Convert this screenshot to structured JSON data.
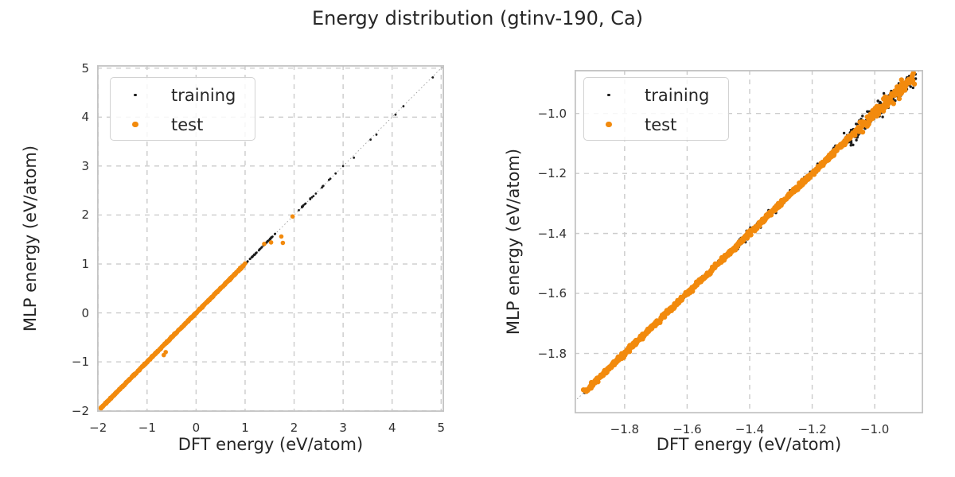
{
  "figure": {
    "title": "Energy distribution (gtinv-190, Ca)"
  },
  "colors": {
    "training": "#1c1c1c",
    "test": "#f28a0d",
    "grid": "#cbcbcb",
    "spine": "#c4c4c4",
    "identity_line": "#9a9a9a",
    "text": "#262626",
    "tick_text": "#303030",
    "background": "#ffffff"
  },
  "legend": {
    "training_label": "training",
    "test_label": "test",
    "position": "upper-left"
  },
  "chart_data": [
    {
      "type": "scatter",
      "panel": "left",
      "description": "Parity plot of MLP vs DFT energies; points lie along the y=x diagonal from -1.95 to 4.83 eV/atom. Test points (orange) cover -1.95 to 0.97 plus a few outliers near 1.4-2.0; training points (black) continue sparsely up to 4.83.",
      "xlabel": "DFT energy (eV/atom)",
      "ylabel": "MLP energy (eV/atom)",
      "xlim": [
        -2.02,
        5.06
      ],
      "ylim": [
        -2.02,
        5.06
      ],
      "xticks": {
        "values": [
          -2,
          -1,
          0,
          1,
          2,
          3,
          4,
          5
        ],
        "labels": [
          "−2",
          "−1",
          "0",
          "1",
          "2",
          "3",
          "4",
          "5"
        ]
      },
      "yticks": {
        "values": [
          -2,
          -1,
          0,
          1,
          2,
          3,
          4,
          5
        ],
        "labels": [
          "−2",
          "−1",
          "0",
          "1",
          "2",
          "3",
          "4",
          "5"
        ]
      },
      "grid": {
        "on": true,
        "style": "dashed"
      },
      "identity_line": true,
      "legend_entries": [
        "training",
        "test"
      ],
      "series": [
        {
          "name": "training",
          "color": "#1c1c1c",
          "marker_radius_px": 1.4,
          "legend_marker_radius_px": 1.7,
          "diagonal_bands": [
            {
              "from": -1.95,
              "to": 0.97,
              "count": 420,
              "jitter": 0.007
            },
            {
              "from": 0.97,
              "to": 1.63,
              "count": 60,
              "jitter": 0.004
            },
            {
              "from": 2.05,
              "to": 2.55,
              "count": 12,
              "jitter": 0.004
            },
            {
              "from": 2.55,
              "to": 2.88,
              "count": 7,
              "jitter": 0.004
            }
          ],
          "points": [
            [
              3.0,
              3.0
            ],
            [
              3.22,
              3.17
            ],
            [
              3.56,
              3.54
            ],
            [
              3.68,
              3.64
            ],
            [
              4.07,
              4.05
            ],
            [
              4.23,
              4.22
            ],
            [
              4.83,
              4.81
            ]
          ]
        },
        {
          "name": "test",
          "color": "#f28a0d",
          "marker_radius_px": 2.8,
          "legend_marker_radius_px": 3.8,
          "diagonal_bands": [
            {
              "from": -1.95,
              "to": 0.97,
              "count": 700,
              "jitter": 0.006
            }
          ],
          "points": [
            [
              -0.66,
              -0.86
            ],
            [
              -0.62,
              -0.8
            ],
            [
              0.9,
              0.92
            ],
            [
              1.0,
              1.01
            ],
            [
              1.39,
              1.41
            ],
            [
              1.53,
              1.44
            ],
            [
              1.74,
              1.56
            ],
            [
              1.77,
              1.43
            ],
            [
              1.97,
              1.97
            ]
          ]
        }
      ]
    },
    {
      "type": "scatter",
      "panel": "right",
      "description": "Zoomed parity plot over the dense low-energy region; orange test band runs along y=x from -1.93 to -0.87 eV/atom, black training points scatter around the diagonal with spread growing toward -0.9.",
      "xlabel": "DFT energy (eV/atom)",
      "ylabel": "MLP energy (eV/atom)",
      "xlim": [
        -1.96,
        -0.845
      ],
      "ylim": [
        -2.0,
        -0.855
      ],
      "xticks": {
        "values": [
          -1.8,
          -1.6,
          -1.4,
          -1.2,
          -1.0
        ],
        "labels": [
          "−1.8",
          "−1.6",
          "−1.4",
          "−1.2",
          "−1.0"
        ]
      },
      "yticks": {
        "values": [
          -1.8,
          -1.6,
          -1.4,
          -1.2,
          -1.0
        ],
        "labels": [
          "−1.8",
          "−1.6",
          "−1.4",
          "−1.2",
          "−1.0"
        ]
      },
      "grid": {
        "on": true,
        "style": "dashed"
      },
      "identity_line": true,
      "legend_entries": [
        "training",
        "test"
      ],
      "series": [
        {
          "name": "training",
          "color": "#1c1c1c",
          "marker_radius_px": 1.7,
          "legend_marker_radius_px": 1.7,
          "diagonal_bands": [
            {
              "from": -1.93,
              "to": -1.45,
              "count": 70,
              "jitter": 0.003
            },
            {
              "from": -1.45,
              "to": -1.1,
              "count": 110,
              "jitter": 0.007
            },
            {
              "from": -1.1,
              "to": -0.875,
              "count": 170,
              "jitter": 0.014
            }
          ],
          "points": []
        },
        {
          "name": "test",
          "color": "#f28a0d",
          "marker_radius_px": 3.2,
          "legend_marker_radius_px": 3.8,
          "diagonal_bands": [
            {
              "from": -1.93,
              "to": -1.05,
              "count": 850,
              "jitter": 0.0035
            },
            {
              "from": -1.05,
              "to": -0.875,
              "count": 130,
              "jitter": 0.01
            }
          ],
          "points": []
        }
      ]
    }
  ]
}
